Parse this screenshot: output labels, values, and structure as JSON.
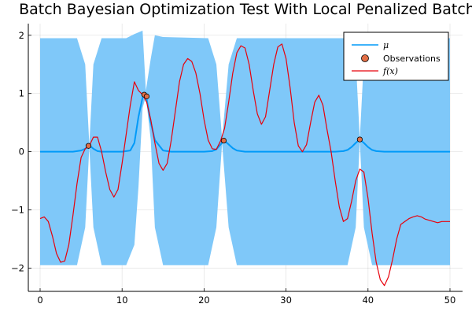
{
  "chart_data": {
    "type": "line",
    "title": "Batch Bayesian Optimization Test With Local Penalized Batch",
    "xlabel": "",
    "ylabel": "",
    "xlim": [
      0,
      50
    ],
    "ylim": [
      -2.4,
      2.2
    ],
    "xticks": [
      0,
      10,
      20,
      30,
      40,
      50
    ],
    "yticks": [
      -2,
      -1,
      0,
      1,
      2
    ],
    "ytick_labels": [
      "−2",
      "−1",
      "0",
      "1",
      "2"
    ],
    "grid": true,
    "legend": {
      "position": "top-right",
      "entries": [
        "μ",
        "Observations",
        "f(x)"
      ]
    },
    "colors": {
      "mean": "#009af9",
      "band": "#7fc8f9",
      "observations": "#e26f46",
      "function": "#e8000b"
    },
    "series": [
      {
        "name": "μ",
        "kind": "line",
        "x": [
          0,
          1,
          2,
          3,
          4,
          5,
          5.5,
          6,
          6.5,
          7,
          7.5,
          8,
          9,
          10,
          11,
          11.5,
          12,
          12.5,
          12.8,
          13,
          13.5,
          14,
          15,
          16,
          17,
          18,
          19,
          20,
          21,
          21.5,
          22,
          22.4,
          22.8,
          23.5,
          24,
          25,
          26,
          27,
          28,
          29,
          30,
          31,
          32,
          33,
          34,
          35,
          36,
          37,
          37.5,
          38,
          38.5,
          39,
          39.5,
          40,
          40.5,
          41,
          42,
          43,
          44,
          45,
          46,
          47,
          48,
          49,
          50
        ],
        "y": [
          0,
          0,
          0,
          0,
          0,
          0.02,
          0.05,
          0.11,
          0.05,
          0.01,
          0,
          0,
          0,
          0,
          0.02,
          0.15,
          0.6,
          0.93,
          0.97,
          0.9,
          0.5,
          0.2,
          0.02,
          0,
          0,
          0,
          0,
          0,
          0.01,
          0.04,
          0.12,
          0.19,
          0.15,
          0.06,
          0.02,
          0,
          0,
          0,
          0,
          0,
          0,
          0,
          0,
          0,
          0,
          0,
          0,
          0.01,
          0.03,
          0.08,
          0.15,
          0.21,
          0.15,
          0.08,
          0.03,
          0.01,
          0,
          0,
          0,
          0,
          0,
          0,
          0,
          0,
          0
        ]
      },
      {
        "name": "band",
        "kind": "band",
        "x": [
          0,
          4.5,
          5.5,
          6,
          6.5,
          7.5,
          10.5,
          11.5,
          12,
          12.5,
          12.9,
          13.5,
          14,
          15,
          20.5,
          21.5,
          22.2,
          23,
          24,
          35.5,
          37.5,
          38.5,
          39,
          39.5,
          40.5,
          42,
          50
        ],
        "upper": [
          1.95,
          1.95,
          1.5,
          0.12,
          1.5,
          1.95,
          1.95,
          2.02,
          2.05,
          2.08,
          1.05,
          1.6,
          2.0,
          1.97,
          1.95,
          1.5,
          0.22,
          1.5,
          1.95,
          1.95,
          1.95,
          1.6,
          0.22,
          1.6,
          1.95,
          1.95,
          1.95
        ],
        "lower": [
          -1.95,
          -1.95,
          -1.3,
          0.08,
          -1.3,
          -1.95,
          -1.95,
          -1.6,
          -0.6,
          0.75,
          0.95,
          0.2,
          -1.3,
          -1.95,
          -1.95,
          -1.3,
          0.15,
          -1.3,
          -1.95,
          -1.95,
          -1.95,
          -1.3,
          0.19,
          -1.3,
          -1.95,
          -1.95,
          -1.95
        ]
      },
      {
        "name": "f(x)",
        "kind": "line",
        "x": [
          0,
          0.5,
          1,
          1.5,
          2,
          2.5,
          3,
          3.5,
          4,
          4.5,
          5,
          5.5,
          6,
          6.5,
          7,
          7.5,
          8,
          8.5,
          9,
          9.5,
          10,
          10.5,
          11,
          11.5,
          12,
          12.5,
          13,
          13.5,
          14,
          14.5,
          15,
          15.5,
          16,
          16.5,
          17,
          17.5,
          18,
          18.5,
          19,
          19.5,
          20,
          20.5,
          21,
          21.5,
          22,
          22.5,
          23,
          23.5,
          24,
          24.5,
          25,
          25.5,
          26,
          26.5,
          27,
          27.5,
          28,
          28.5,
          29,
          29.5,
          30,
          30.5,
          31,
          31.5,
          32,
          32.5,
          33,
          33.5,
          34,
          34.5,
          35,
          35.5,
          36,
          36.5,
          37,
          37.5,
          38,
          38.5,
          39,
          39.5,
          40,
          40.5,
          41,
          41.5,
          42,
          42.5,
          43,
          43.5,
          44,
          44.5,
          45,
          45.5,
          46,
          46.5,
          47,
          47.5,
          48,
          48.5,
          49,
          49.5,
          50
        ],
        "y": [
          -1.15,
          -1.12,
          -1.2,
          -1.45,
          -1.75,
          -1.9,
          -1.88,
          -1.6,
          -1.1,
          -0.55,
          -0.1,
          0.05,
          0.1,
          0.25,
          0.25,
          0.0,
          -0.35,
          -0.65,
          -0.78,
          -0.65,
          -0.2,
          0.3,
          0.8,
          1.2,
          1.05,
          0.98,
          0.85,
          0.55,
          0.15,
          -0.2,
          -0.32,
          -0.2,
          0.2,
          0.7,
          1.2,
          1.5,
          1.6,
          1.55,
          1.35,
          1.0,
          0.55,
          0.2,
          0.05,
          0.04,
          0.18,
          0.4,
          0.85,
          1.35,
          1.7,
          1.82,
          1.78,
          1.5,
          1.05,
          0.65,
          0.47,
          0.6,
          1.05,
          1.5,
          1.8,
          1.85,
          1.6,
          1.1,
          0.5,
          0.1,
          0.0,
          0.12,
          0.5,
          0.85,
          0.97,
          0.8,
          0.38,
          0.0,
          -0.5,
          -0.95,
          -1.2,
          -1.15,
          -0.85,
          -0.5,
          -0.3,
          -0.35,
          -0.8,
          -1.4,
          -1.9,
          -2.2,
          -2.3,
          -2.15,
          -1.85,
          -1.5,
          -1.25,
          -1.2,
          -1.15,
          -1.12,
          -1.1,
          -1.12,
          -1.16,
          -1.18,
          -1.2,
          -1.22,
          -1.2,
          -1.2,
          -1.2
        ]
      },
      {
        "name": "Observations",
        "kind": "scatter",
        "x": [
          5.9,
          12.7,
          13.0,
          22.4,
          39.0
        ],
        "y": [
          0.1,
          0.98,
          0.95,
          0.19,
          0.21
        ]
      }
    ]
  }
}
